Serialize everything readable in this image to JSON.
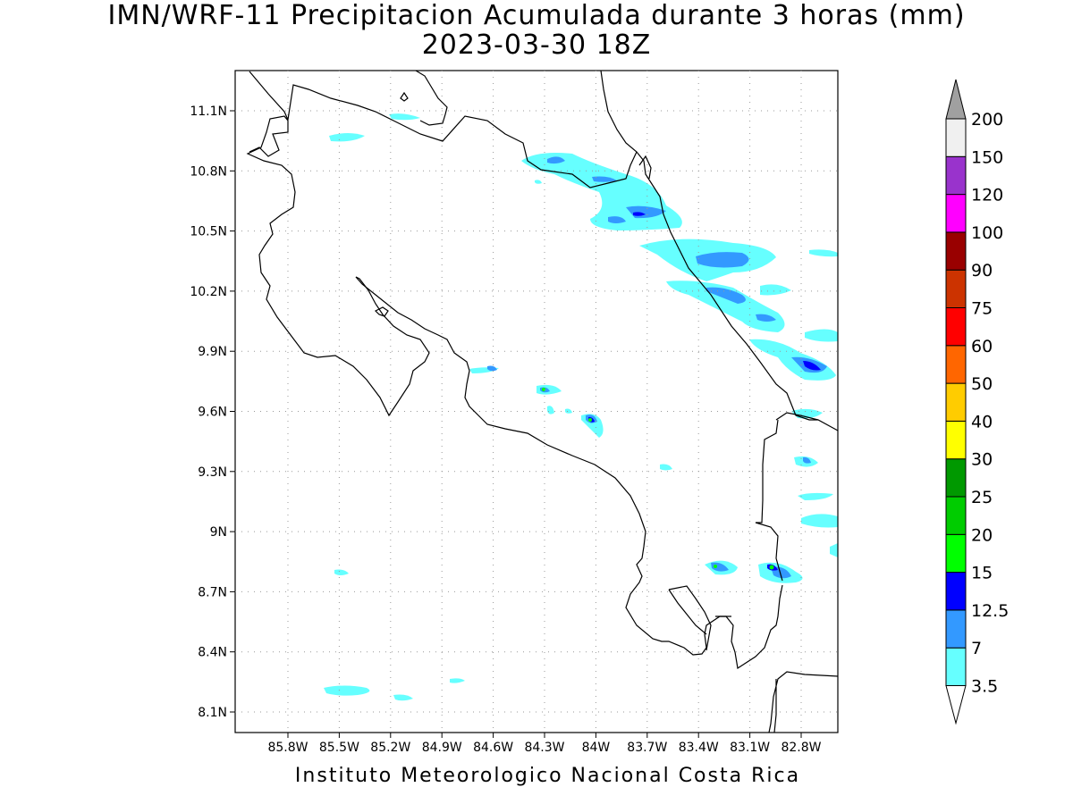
{
  "header": {
    "title": "IMN/WRF-11 Precipitacion Acumulada durante 3 horas (mm)",
    "subtitle": "2023-03-30 18Z"
  },
  "footer": {
    "credit": "Instituto Meteorologico Nacional Costa Rica"
  },
  "map": {
    "lat_ticks": [
      "11.1N",
      "10.8N",
      "10.5N",
      "10.2N",
      "9.9N",
      "9.6N",
      "9.3N",
      "9N",
      "8.7N",
      "8.4N",
      "8.1N"
    ],
    "lon_ticks": [
      "85.8W",
      "85.5W",
      "85.2W",
      "84.9W",
      "84.6W",
      "84.3W",
      "84W",
      "83.7W",
      "83.4W",
      "83.1W",
      "82.8W"
    ],
    "lat_values": [
      11.1,
      10.8,
      10.5,
      10.2,
      9.9,
      9.6,
      9.3,
      9.0,
      8.7,
      8.4,
      8.1
    ],
    "lon_values": [
      -85.8,
      -85.5,
      -85.2,
      -84.9,
      -84.6,
      -84.3,
      -84.0,
      -83.7,
      -83.4,
      -83.1,
      -82.8
    ]
  },
  "colorbar": {
    "labels": [
      "3.5",
      "7",
      "12.5",
      "15",
      "20",
      "25",
      "30",
      "40",
      "50",
      "60",
      "75",
      "90",
      "100",
      "120",
      "150",
      "200"
    ],
    "colors": [
      "#66ffff",
      "#3399ff",
      "#0000ff",
      "#00ff00",
      "#00cc00",
      "#009900",
      "#ffff00",
      "#ffcc00",
      "#ff6600",
      "#ff0000",
      "#cc3300",
      "#990000",
      "#ff00ff",
      "#9933cc",
      "#f0f0f0"
    ],
    "arrow_top_color": "#a0a0a0",
    "arrow_bottom_color": "#ffffff"
  }
}
